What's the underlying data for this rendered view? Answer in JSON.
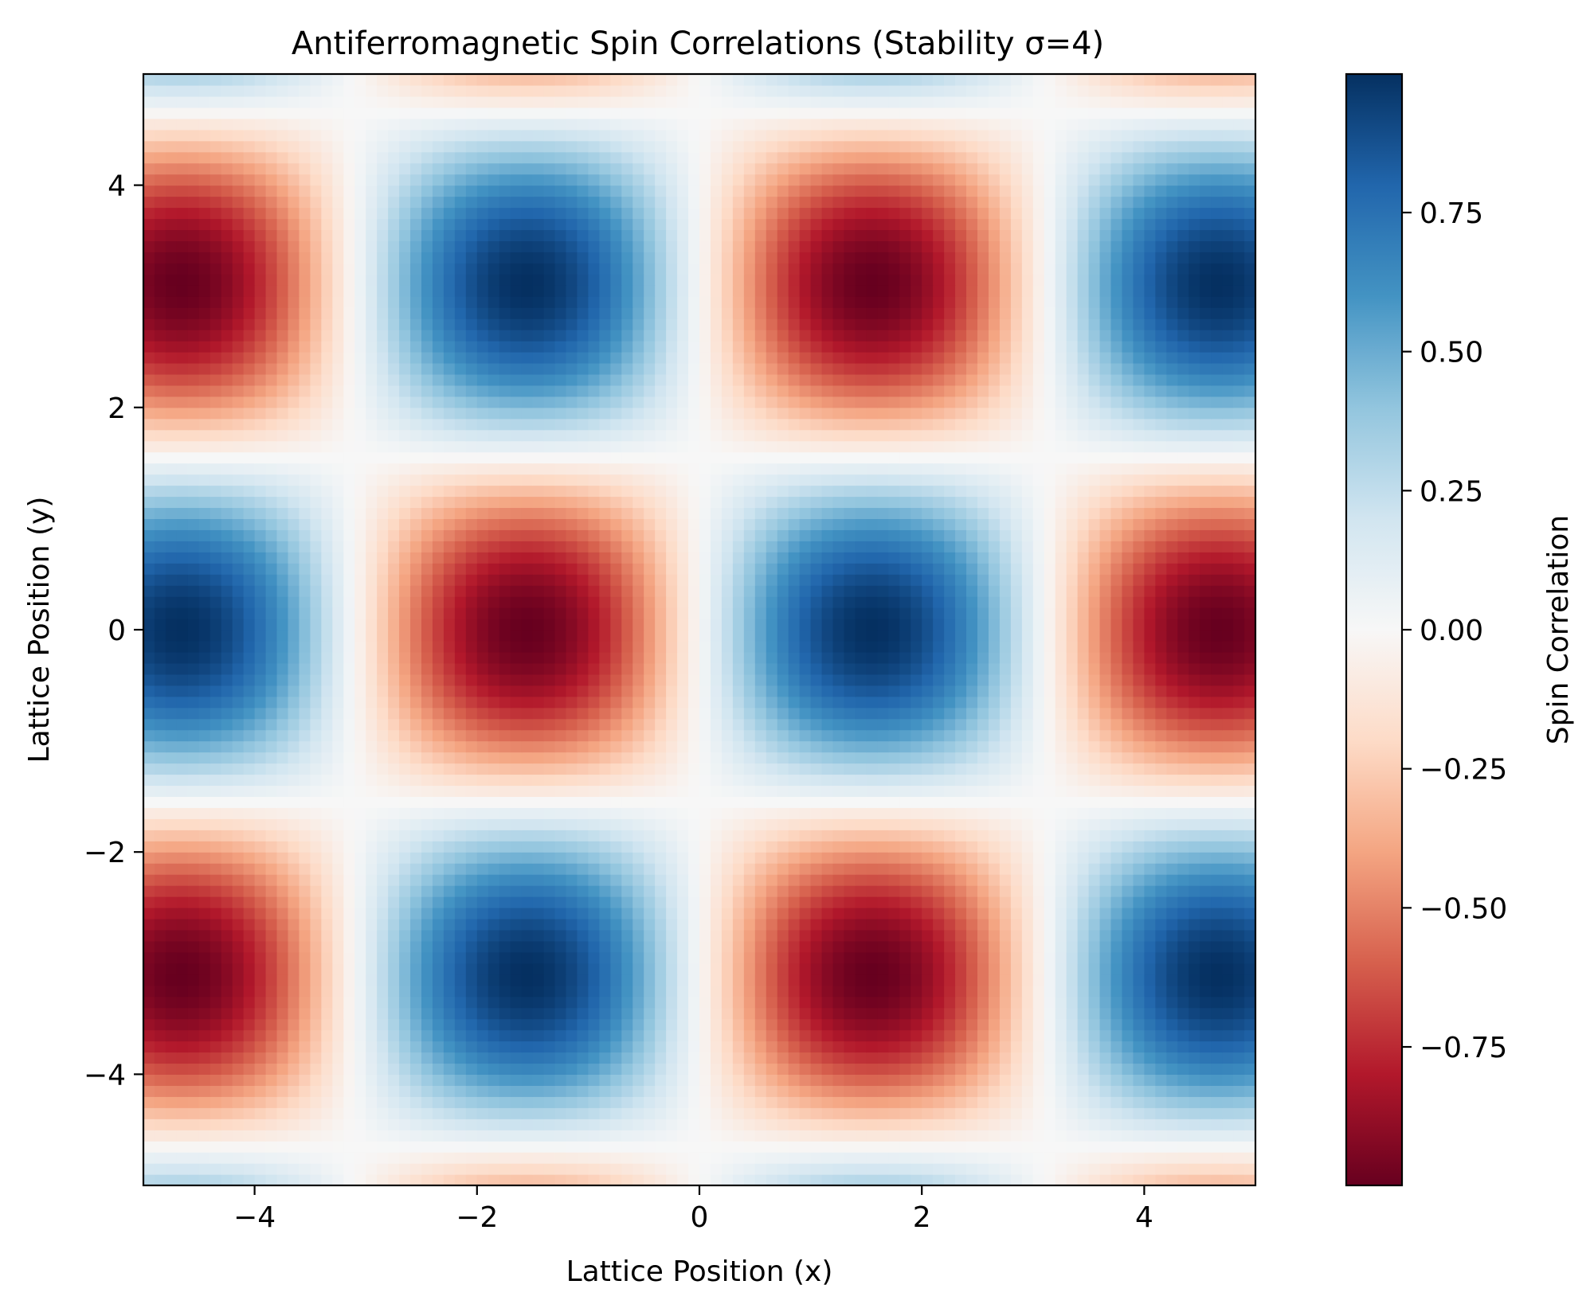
{
  "chart_data": {
    "type": "heatmap",
    "title": "Antiferromagnetic Spin Correlations (Stability σ=4)",
    "xlabel": "Lattice Position (x)",
    "ylabel": "Lattice Position (y)",
    "xlim": [
      -5,
      5
    ],
    "ylim": [
      -5,
      5
    ],
    "x_ticks": [
      -4,
      -2,
      0,
      2,
      4
    ],
    "x_tick_labels": [
      "−4",
      "−2",
      "0",
      "2",
      "4"
    ],
    "y_ticks": [
      -4,
      -2,
      0,
      2,
      4
    ],
    "y_tick_labels": [
      "−4",
      "−2",
      "0",
      "2",
      "4"
    ],
    "grid_size": 100,
    "function": "sin(x) * cos(y)",
    "colormap": "RdBu",
    "colorbar": {
      "label": "Spin Correlation",
      "range": [
        -0.999,
        0.999
      ],
      "ticks": [
        -0.75,
        -0.5,
        -0.25,
        0.0,
        0.25,
        0.5,
        0.75
      ],
      "tick_labels": [
        "−0.75",
        "−0.50",
        "−0.25",
        "0.00",
        "0.25",
        "0.50",
        "0.75"
      ]
    },
    "grid": false
  }
}
